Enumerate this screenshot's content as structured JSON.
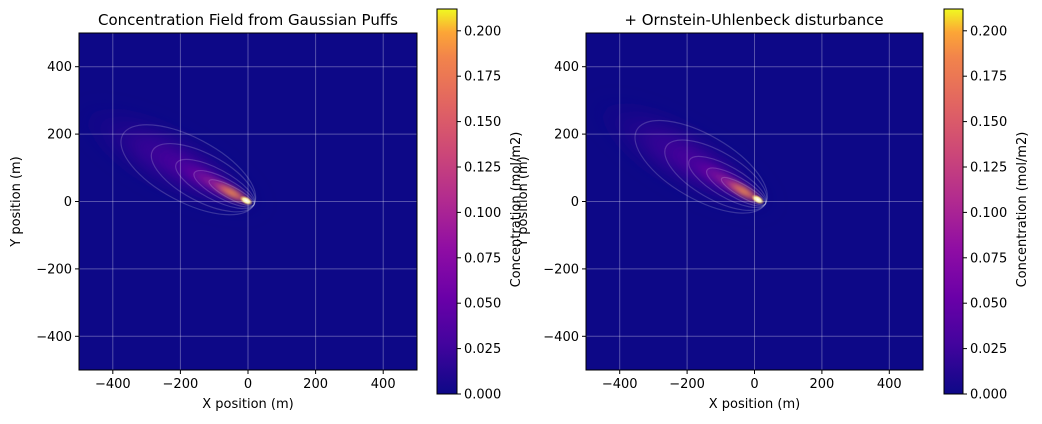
{
  "chart_data": [
    {
      "type": "heatmap",
      "title": "Concentration Field from Gaussian Puffs",
      "xlabel": "X position (m)",
      "ylabel": "Y position (m)",
      "xlim": [
        -500,
        500
      ],
      "ylim": [
        -500,
        500
      ],
      "xticks": [
        -400,
        -200,
        0,
        200,
        400
      ],
      "yticks": [
        -400,
        -200,
        0,
        200,
        400
      ],
      "x_tick_labels": [
        "−400",
        "−200",
        "0",
        "200",
        "400"
      ],
      "y_tick_labels": [
        "−400",
        "−200",
        "0",
        "200",
        "400"
      ],
      "grid": true,
      "colormap": "plasma",
      "plume": {
        "source": [
          0,
          0
        ],
        "direction_deg": 152,
        "max_value": 0.21
      },
      "colorbar": {
        "label": "Concentration (mol/m2)",
        "range": [
          0,
          0.212
        ],
        "ticks": [
          0.0,
          0.025,
          0.05,
          0.075,
          0.1,
          0.125,
          0.15,
          0.175,
          0.2
        ],
        "tick_labels": [
          "0.000",
          "0.025",
          "0.050",
          "0.075",
          "0.100",
          "0.125",
          "0.150",
          "0.175",
          "0.200"
        ]
      }
    },
    {
      "type": "heatmap",
      "title": "+ Ornstein-Uhlenbeck disturbance",
      "xlabel": "X position (m)",
      "ylabel": "Y position (m)",
      "xlim": [
        -500,
        500
      ],
      "ylim": [
        -500,
        500
      ],
      "xticks": [
        -400,
        -200,
        0,
        200,
        400
      ],
      "yticks": [
        -400,
        -200,
        0,
        200,
        400
      ],
      "x_tick_labels": [
        "−400",
        "−200",
        "0",
        "200",
        "400"
      ],
      "y_tick_labels": [
        "−400",
        "−200",
        "0",
        "200",
        "400"
      ],
      "grid": true,
      "colormap": "plasma",
      "plume": {
        "source": [
          15,
          3
        ],
        "direction_deg": 150,
        "max_value": 0.21
      },
      "colorbar": {
        "label": "Concentration (mol/m2)",
        "range": [
          0,
          0.212
        ],
        "ticks": [
          0.0,
          0.025,
          0.05,
          0.075,
          0.1,
          0.125,
          0.15,
          0.175,
          0.2
        ],
        "tick_labels": [
          "0.000",
          "0.025",
          "0.050",
          "0.075",
          "0.100",
          "0.125",
          "0.150",
          "0.175",
          "0.200"
        ]
      }
    }
  ]
}
